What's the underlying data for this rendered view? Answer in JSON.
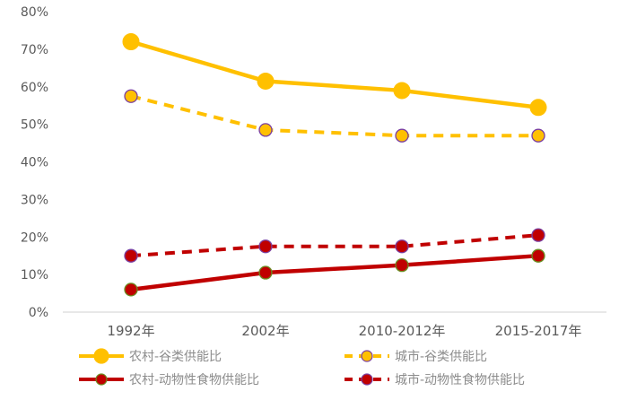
{
  "chart_data": {
    "type": "line",
    "categories": [
      "1992年",
      "2002年",
      "2010-2012年",
      "2015-2017年"
    ],
    "y_ticks": [
      "0%",
      "10%",
      "20%",
      "30%",
      "40%",
      "50%",
      "60%",
      "70%",
      "80%"
    ],
    "ylim": [
      0,
      80
    ],
    "y_unit": "%",
    "grid": false,
    "legend_position": "bottom",
    "series": [
      {
        "name": "农村-谷类供能比",
        "values": [
          72,
          61.5,
          59,
          54.5
        ],
        "color": "#FFC000",
        "line_style": "solid",
        "marker_fill": "#FFC000",
        "marker_stroke": "#FFC000"
      },
      {
        "name": "城市-谷类供能比",
        "values": [
          57.5,
          48.5,
          47,
          47
        ],
        "color": "#FFC000",
        "line_style": "dashed",
        "marker_fill": "#FFC000",
        "marker_stroke": "#7A3FA0"
      },
      {
        "name": "农村-动物性食物供能比",
        "values": [
          6,
          10.5,
          12.5,
          15
        ],
        "color": "#C00000",
        "line_style": "solid",
        "marker_fill": "#C00000",
        "marker_stroke": "#6B8E23"
      },
      {
        "name": "城市-动物性食物供能比",
        "values": [
          15,
          17.5,
          17.5,
          20.5
        ],
        "color": "#C00000",
        "line_style": "dashed",
        "marker_fill": "#C00000",
        "marker_stroke": "#7A3FA0"
      }
    ]
  }
}
